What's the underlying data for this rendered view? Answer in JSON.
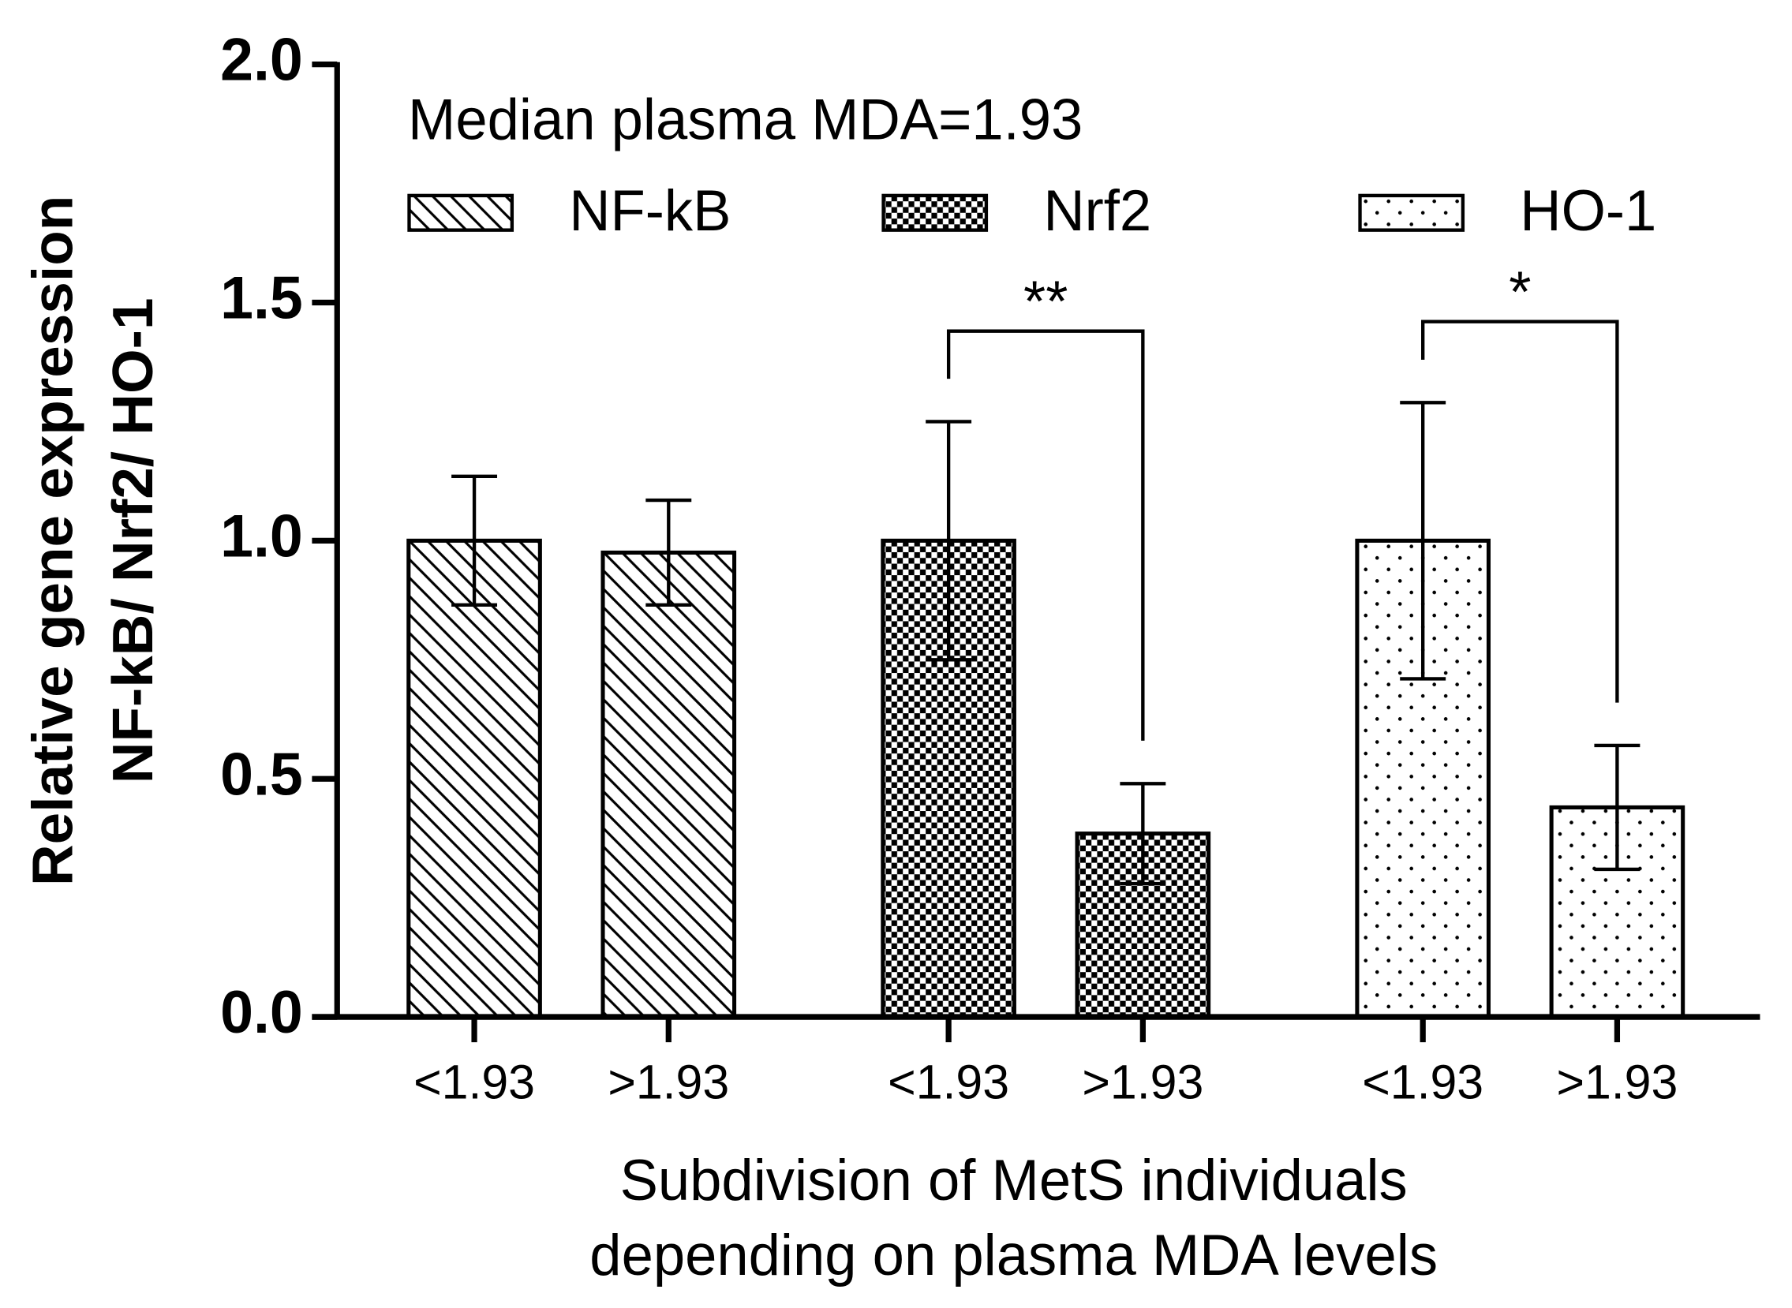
{
  "chart_data": {
    "type": "bar",
    "legend_title": "Median plasma MDA=1.93",
    "x_label": [
      "Subdivision of MetS individuals",
      "depending on plasma MDA levels"
    ],
    "y_label": [
      "Relative gene expression",
      "NF-kB/ Nrf2/ HO-1"
    ],
    "categories": [
      "<1.93",
      ">1.93",
      "<1.93",
      ">1.93",
      "<1.93",
      ">1.93"
    ],
    "series": [
      {
        "name": "NF-kB",
        "color": "#000000",
        "pattern": "hatch",
        "values": [
          1.0,
          0.975,
          null,
          null,
          null,
          null
        ],
        "errors": [
          0.135,
          0.11,
          null,
          null,
          null,
          null
        ]
      },
      {
        "name": "Nrf2",
        "color": "#000000",
        "pattern": "checker",
        "values": [
          null,
          null,
          1.0,
          0.385,
          null,
          null
        ],
        "errors": [
          null,
          null,
          0.25,
          0.105,
          null,
          null
        ]
      },
      {
        "name": "HO-1",
        "color": "#000000",
        "pattern": "dots",
        "values": [
          null,
          null,
          null,
          null,
          1.0,
          0.44
        ],
        "errors": [
          null,
          null,
          null,
          null,
          0.29,
          0.13
        ]
      }
    ],
    "annotations": [
      {
        "text": "**",
        "between": [
          2,
          3
        ],
        "y": 1.44
      },
      {
        "text": "*",
        "between": [
          4,
          5
        ],
        "y": 1.46
      }
    ],
    "ylim": [
      0,
      2.0
    ],
    "yticks": [
      {
        "value": 0,
        "label": "0.0"
      },
      {
        "value": 0.5,
        "label": "0.5"
      },
      {
        "value": 1.0,
        "label": "1.0"
      },
      {
        "value": 1.5,
        "label": "1.5"
      },
      {
        "value": 2.0,
        "label": "2.0"
      }
    ]
  }
}
